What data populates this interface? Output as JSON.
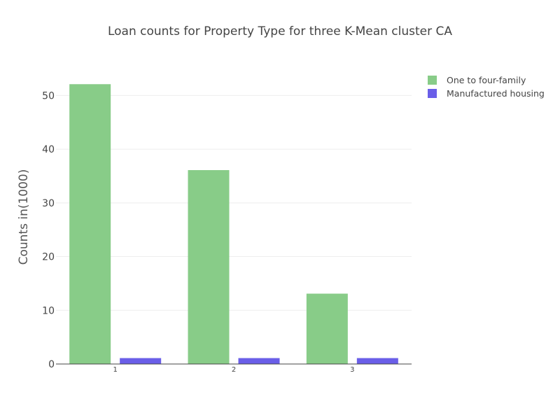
{
  "chart_data": {
    "type": "bar",
    "title": "Loan counts for Property Type for three K-Mean cluster CA",
    "xlabel": "",
    "ylabel": "Counts in(1000)",
    "categories": [
      "1",
      "2",
      "3"
    ],
    "series": [
      {
        "name": "One to four-family",
        "color": "#88cc88",
        "values": [
          52.1,
          36.1,
          13.1
        ]
      },
      {
        "name": "Manufactured housing",
        "color": "#6a5ee8",
        "values": [
          1.1,
          1.1,
          1.1
        ]
      }
    ],
    "ylim": [
      0,
      55
    ],
    "yticks": [
      0,
      10,
      20,
      30,
      40,
      50
    ],
    "grid": true,
    "legend": "top-right"
  }
}
